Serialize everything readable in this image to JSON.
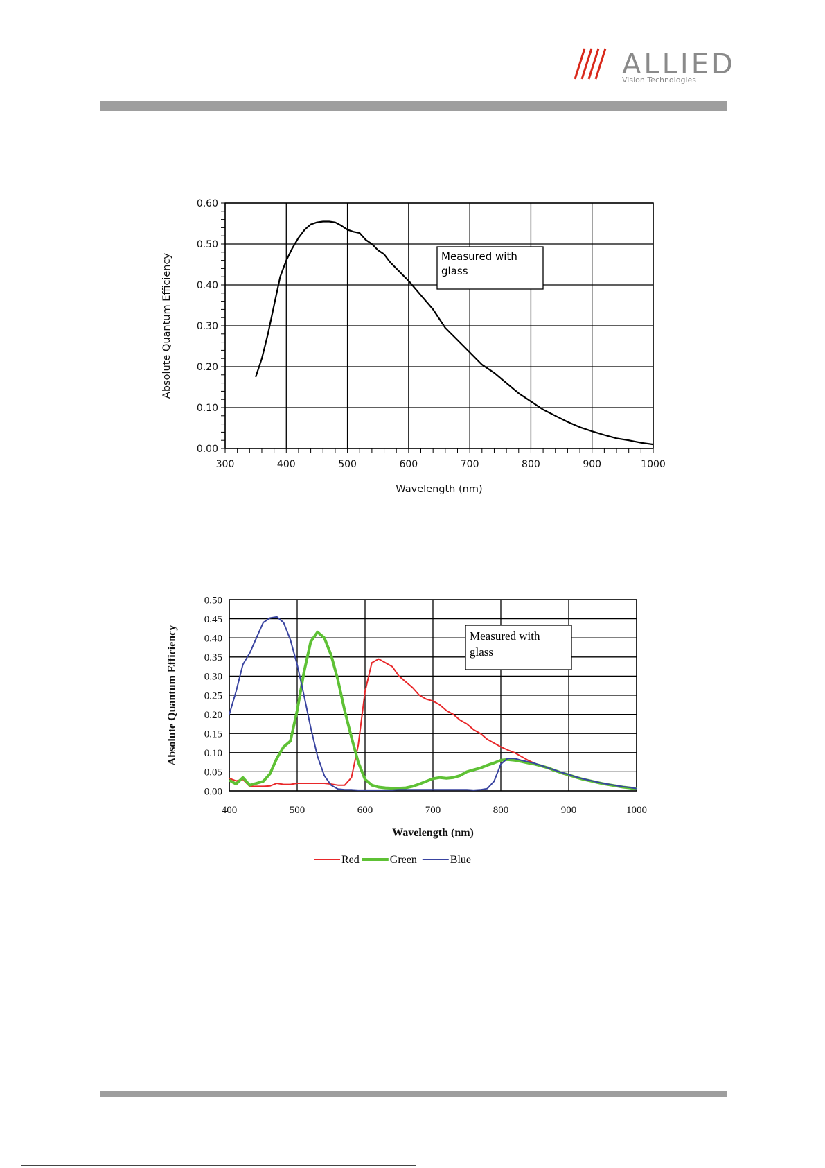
{
  "header": {
    "logo_word": "ALLIED",
    "logo_tagline": "Vision Technologies"
  },
  "colors": {
    "bar": "#9e9e9e",
    "logo_stripes": "#d9281a",
    "logo_text": "#8a8a8a"
  },
  "chart_data": [
    {
      "type": "line",
      "xlabel": "Wavelength (nm)",
      "ylabel": "Absolute Quantum Efficiency",
      "xlim": [
        300,
        1000
      ],
      "ylim": [
        0,
        0.6
      ],
      "xticks": [
        "300",
        "400",
        "500",
        "600",
        "700",
        "800",
        "900",
        "1000"
      ],
      "yticks": [
        "0.00",
        "0.10",
        "0.20",
        "0.30",
        "0.40",
        "0.50",
        "0.60"
      ],
      "grid": true,
      "annotation": [
        "Measured with",
        "glass"
      ],
      "series": [
        {
          "color": "#000000",
          "x": [
            350,
            360,
            370,
            380,
            390,
            400,
            410,
            420,
            430,
            440,
            450,
            460,
            470,
            480,
            490,
            500,
            510,
            520,
            530,
            540,
            550,
            560,
            570,
            580,
            590,
            600,
            620,
            640,
            660,
            680,
            700,
            720,
            740,
            760,
            780,
            800,
            820,
            840,
            860,
            880,
            900,
            920,
            940,
            960,
            980,
            1000
          ],
          "y": [
            0.175,
            0.22,
            0.28,
            0.35,
            0.42,
            0.46,
            0.49,
            0.515,
            0.535,
            0.548,
            0.553,
            0.555,
            0.555,
            0.553,
            0.545,
            0.535,
            0.53,
            0.527,
            0.51,
            0.5,
            0.485,
            0.475,
            0.455,
            0.44,
            0.425,
            0.41,
            0.375,
            0.34,
            0.295,
            0.265,
            0.235,
            0.205,
            0.185,
            0.16,
            0.135,
            0.115,
            0.095,
            0.08,
            0.065,
            0.052,
            0.042,
            0.033,
            0.025,
            0.02,
            0.014,
            0.01
          ]
        }
      ]
    },
    {
      "type": "line",
      "xlabel": "Wavelength (nm)",
      "ylabel": "Absolute Quantum Efficiency",
      "xlim": [
        400,
        1000
      ],
      "ylim": [
        0,
        0.5
      ],
      "xticks": [
        "400",
        "500",
        "600",
        "700",
        "800",
        "900",
        "1000"
      ],
      "yticks": [
        "0.00",
        "0.05",
        "0.10",
        "0.15",
        "0.20",
        "0.25",
        "0.30",
        "0.35",
        "0.40",
        "0.45",
        "0.50"
      ],
      "grid": true,
      "legend_position": "bottom",
      "annotation": [
        "Measured with",
        "glass"
      ],
      "series": [
        {
          "name": "Red",
          "color": "#e8282a",
          "width": 2,
          "x": [
            400,
            410,
            420,
            430,
            440,
            450,
            460,
            470,
            480,
            490,
            500,
            510,
            520,
            530,
            540,
            550,
            560,
            570,
            580,
            590,
            600,
            610,
            620,
            630,
            640,
            650,
            660,
            670,
            680,
            690,
            700,
            710,
            720,
            730,
            740,
            750,
            760,
            770,
            780,
            790,
            800,
            810,
            820,
            830,
            840,
            850,
            860,
            870,
            880,
            890,
            900,
            910,
            920,
            930,
            940,
            950,
            960,
            970,
            980,
            990,
            1000
          ],
          "y": [
            0.033,
            0.026,
            0.03,
            0.012,
            0.012,
            0.012,
            0.013,
            0.02,
            0.017,
            0.017,
            0.02,
            0.02,
            0.02,
            0.02,
            0.02,
            0.018,
            0.015,
            0.015,
            0.035,
            0.12,
            0.26,
            0.335,
            0.345,
            0.335,
            0.325,
            0.3,
            0.285,
            0.27,
            0.25,
            0.24,
            0.235,
            0.225,
            0.21,
            0.2,
            0.185,
            0.175,
            0.16,
            0.15,
            0.135,
            0.125,
            0.115,
            0.107,
            0.1,
            0.09,
            0.08,
            0.072,
            0.065,
            0.058,
            0.052,
            0.045,
            0.04,
            0.035,
            0.03,
            0.026,
            0.022,
            0.019,
            0.016,
            0.013,
            0.01,
            0.008,
            0.005
          ]
        },
        {
          "name": "Green",
          "color": "#5ec135",
          "width": 4,
          "x": [
            400,
            410,
            420,
            430,
            440,
            450,
            460,
            470,
            480,
            490,
            500,
            510,
            520,
            530,
            540,
            550,
            560,
            570,
            580,
            590,
            600,
            610,
            620,
            630,
            640,
            650,
            660,
            670,
            680,
            690,
            700,
            710,
            720,
            730,
            740,
            750,
            760,
            770,
            780,
            790,
            800,
            810,
            820,
            830,
            840,
            850,
            860,
            870,
            880,
            890,
            900,
            910,
            920,
            930,
            940,
            950,
            960,
            970,
            980,
            990,
            1000
          ],
          "y": [
            0.028,
            0.018,
            0.035,
            0.015,
            0.02,
            0.025,
            0.045,
            0.085,
            0.115,
            0.13,
            0.21,
            0.31,
            0.39,
            0.415,
            0.4,
            0.355,
            0.29,
            0.21,
            0.14,
            0.075,
            0.03,
            0.015,
            0.01,
            0.008,
            0.007,
            0.007,
            0.008,
            0.012,
            0.018,
            0.025,
            0.032,
            0.035,
            0.033,
            0.035,
            0.04,
            0.05,
            0.055,
            0.06,
            0.067,
            0.073,
            0.08,
            0.082,
            0.08,
            0.077,
            0.073,
            0.07,
            0.065,
            0.06,
            0.053,
            0.047,
            0.042,
            0.036,
            0.031,
            0.027,
            0.023,
            0.019,
            0.016,
            0.013,
            0.01,
            0.008,
            0.005
          ]
        },
        {
          "name": "Blue",
          "color": "#3944a0",
          "width": 2,
          "x": [
            400,
            410,
            420,
            430,
            440,
            450,
            460,
            470,
            480,
            490,
            500,
            510,
            520,
            530,
            540,
            550,
            560,
            570,
            580,
            590,
            600,
            610,
            620,
            630,
            640,
            650,
            660,
            670,
            680,
            690,
            700,
            710,
            720,
            730,
            740,
            750,
            760,
            770,
            780,
            790,
            800,
            810,
            820,
            830,
            840,
            850,
            860,
            870,
            880,
            890,
            900,
            910,
            920,
            930,
            940,
            950,
            960,
            970,
            980,
            990,
            1000
          ],
          "y": [
            0.2,
            0.26,
            0.33,
            0.36,
            0.4,
            0.44,
            0.452,
            0.455,
            0.44,
            0.395,
            0.33,
            0.25,
            0.165,
            0.09,
            0.04,
            0.015,
            0.005,
            0.003,
            0.003,
            0.002,
            0.002,
            0.002,
            0.002,
            0.002,
            0.002,
            0.003,
            0.003,
            0.003,
            0.003,
            0.003,
            0.003,
            0.003,
            0.003,
            0.003,
            0.003,
            0.003,
            0.002,
            0.003,
            0.006,
            0.025,
            0.07,
            0.085,
            0.085,
            0.08,
            0.076,
            0.072,
            0.066,
            0.06,
            0.054,
            0.048,
            0.043,
            0.037,
            0.032,
            0.028,
            0.024,
            0.02,
            0.017,
            0.014,
            0.011,
            0.009,
            0.006
          ]
        }
      ]
    }
  ]
}
